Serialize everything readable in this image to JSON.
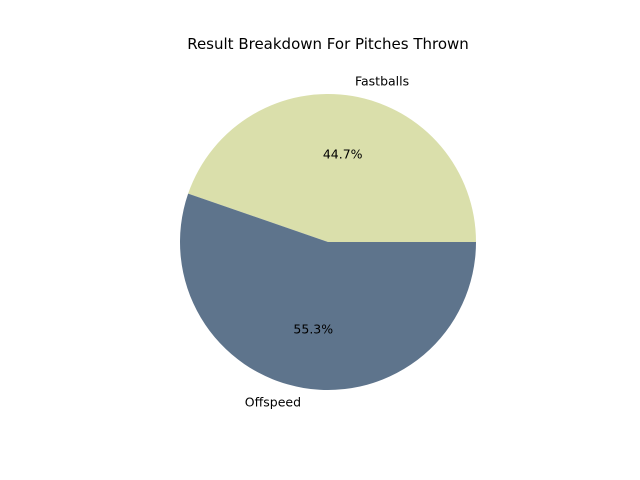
{
  "chart_data": {
    "type": "pie",
    "title": "Result Breakdown For Pitches Thrown",
    "slices": [
      {
        "label": "Fastballs",
        "percent": 44.7,
        "percent_label": "44.7%",
        "color": "#dadfab"
      },
      {
        "label": "Offspeed",
        "percent": 55.3,
        "percent_label": "55.3%",
        "color": "#5e748c"
      }
    ],
    "start_angle_deg": 0,
    "direction": "counterclockwise",
    "legend": "none"
  }
}
